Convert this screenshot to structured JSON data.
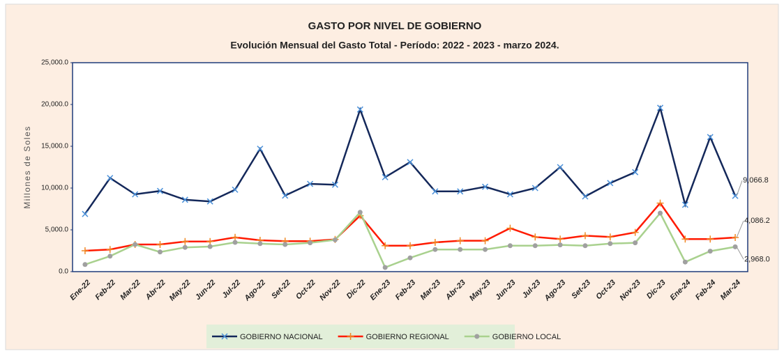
{
  "chart_data": {
    "type": "line",
    "title": "GASTO POR NIVEL DE GOBIERNO",
    "subtitle": "Evolución Mensual del Gasto Total - Período: 2022 - 2023 - marzo 2024.",
    "y_label": "Millones de Soles",
    "categories": [
      "Ene-22",
      "Feb-22",
      "Mar-22",
      "Abr-22",
      "May-22",
      "Jun-22",
      "Jul-22",
      "Ago-22",
      "Set-22",
      "Oct-22",
      "Nov-22",
      "Dic-22",
      "Ene-23",
      "Feb-23",
      "Mar-23",
      "Abr-23",
      "May-23",
      "Jun-23",
      "Jul-23",
      "Ago-23",
      "Set-23",
      "Oct-23",
      "Nov-23",
      "Dic-23",
      "Ene-24",
      "Feb-24",
      "Mar-24"
    ],
    "series": [
      {
        "name": "GOBIERNO NACIONAL",
        "color": "#14285a",
        "marker_color": "#4a90d9",
        "marker": "x",
        "values": [
          6900,
          11200,
          9250,
          9650,
          8600,
          8400,
          9800,
          14700,
          9100,
          10500,
          10400,
          19400,
          11300,
          13100,
          9600,
          9600,
          10150,
          9250,
          10000,
          12500,
          9000,
          10600,
          11900,
          19600,
          8000,
          16100,
          9066.8
        ],
        "value_labels": [
          null,
          null,
          null,
          null,
          null,
          null,
          null,
          null,
          null,
          null,
          null,
          null,
          null,
          null,
          null,
          null,
          null,
          null,
          null,
          null,
          null,
          null,
          null,
          null,
          null,
          null,
          "9,066.8"
        ]
      },
      {
        "name": "GOBIERNO REGIONAL",
        "color": "#ff1a00",
        "marker_color": "#f08a24",
        "marker": "plus",
        "values": [
          2500,
          2650,
          3250,
          3250,
          3600,
          3600,
          4100,
          3750,
          3650,
          3650,
          3850,
          6700,
          3100,
          3100,
          3500,
          3700,
          3700,
          5200,
          4150,
          3900,
          4300,
          4150,
          4700,
          8200,
          3900,
          3900,
          4086.2
        ],
        "value_labels": [
          null,
          null,
          null,
          null,
          null,
          null,
          null,
          null,
          null,
          null,
          null,
          null,
          null,
          null,
          null,
          null,
          null,
          null,
          null,
          null,
          null,
          null,
          null,
          null,
          null,
          null,
          "4,086.2"
        ]
      },
      {
        "name": "GOBIERNO LOCAL",
        "color": "#a9d18e",
        "marker_color": "#a0a0a0",
        "marker": "circle",
        "values": [
          850,
          1850,
          3250,
          2350,
          2900,
          3000,
          3500,
          3350,
          3250,
          3450,
          3800,
          7100,
          500,
          1650,
          2650,
          2650,
          2650,
          3100,
          3100,
          3200,
          3100,
          3350,
          3450,
          7000,
          1150,
          2450,
          2968.0
        ],
        "value_labels": [
          null,
          null,
          null,
          null,
          null,
          null,
          null,
          null,
          null,
          null,
          null,
          null,
          null,
          null,
          null,
          null,
          null,
          null,
          null,
          null,
          null,
          null,
          null,
          null,
          null,
          null,
          "2,968.0"
        ]
      }
    ],
    "ylim": [
      0,
      25000
    ],
    "yticks": [
      {
        "value": 0,
        "label": "0.0"
      },
      {
        "value": 5000,
        "label": "5,000.0"
      },
      {
        "value": 10000,
        "label": "10,000.0"
      },
      {
        "value": 15000,
        "label": "15,000.0"
      },
      {
        "value": 20000,
        "label": "20,000.0"
      },
      {
        "value": 25000,
        "label": "25,000.0"
      }
    ],
    "grid": false,
    "legend": "bottom"
  }
}
